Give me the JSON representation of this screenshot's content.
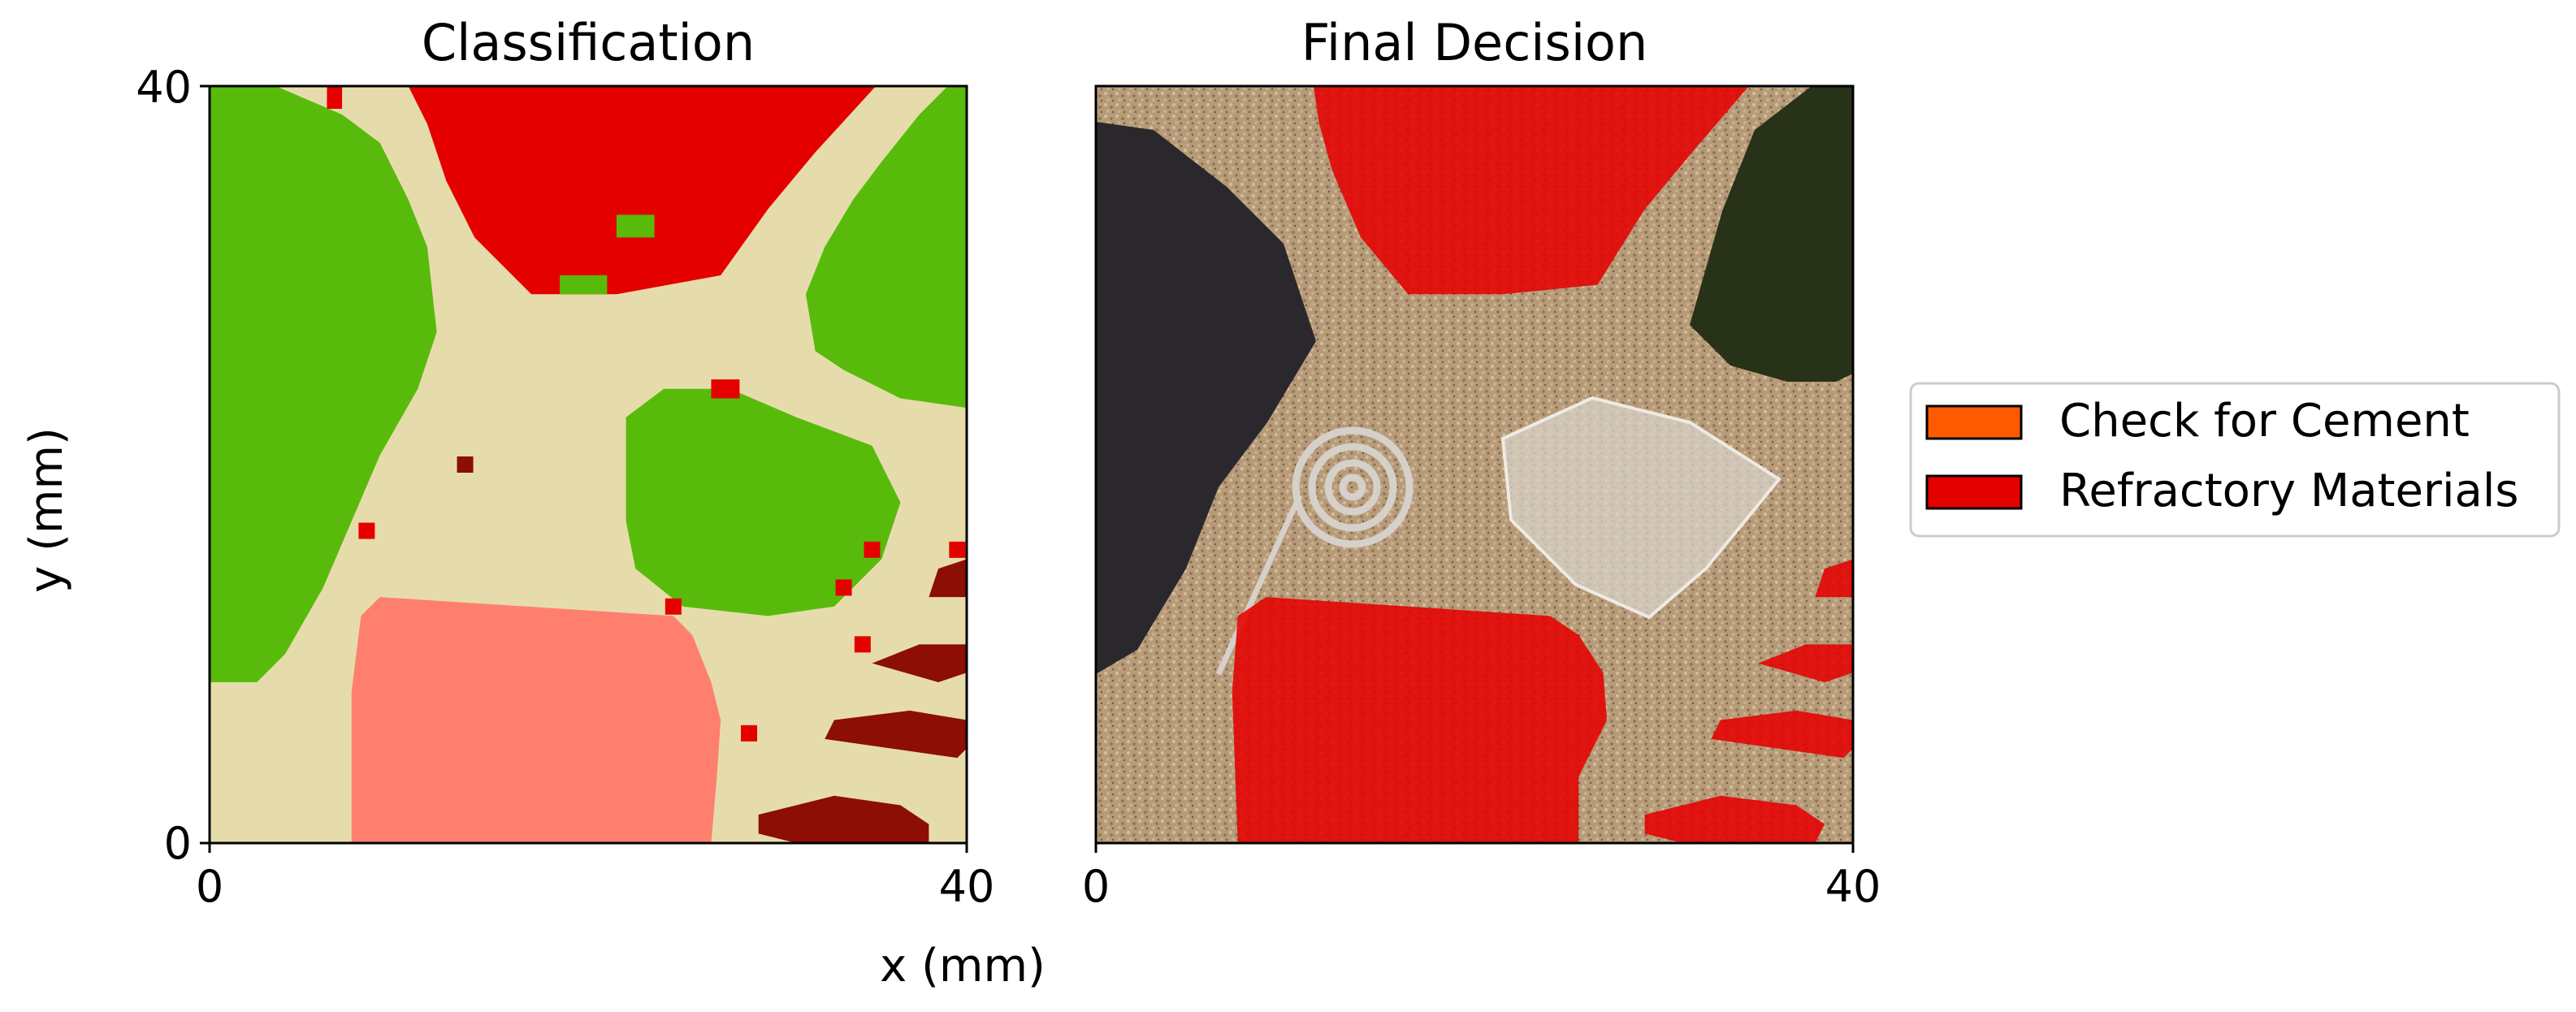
{
  "figure": {
    "xlabel": "x (mm)",
    "ylabel": "y (mm)"
  },
  "chart_data": [
    {
      "type": "heatmap",
      "title": "Classification",
      "xlim": [
        0,
        40
      ],
      "ylim": [
        0,
        40
      ],
      "xticks": [
        "0",
        "40"
      ],
      "yticks": [
        "0",
        "40"
      ],
      "classes": [
        {
          "id": "background",
          "color": "#e6dcab"
        },
        {
          "id": "class-green",
          "color": "#58bb0b"
        },
        {
          "id": "class-red",
          "color": "#e50000"
        },
        {
          "id": "class-salmon",
          "color": "#ff7f6f"
        },
        {
          "id": "class-darkred",
          "color": "#8c0e06"
        }
      ],
      "regions": [
        {
          "class": "class-red",
          "polygon": [
            [
              10.5,
              40
            ],
            [
              35.2,
              40
            ],
            [
              32,
              36.5
            ],
            [
              29.5,
              33.5
            ],
            [
              27,
              30
            ],
            [
              21.5,
              29
            ],
            [
              17,
              29
            ],
            [
              14,
              32
            ],
            [
              12.5,
              35
            ],
            [
              11.5,
              38
            ]
          ]
        },
        {
          "class": "class-green",
          "polygon": [
            [
              0,
              40
            ],
            [
              3.5,
              40
            ],
            [
              7,
              38.5
            ],
            [
              9,
              37
            ],
            [
              10.5,
              34
            ],
            [
              11.5,
              31.5
            ],
            [
              12,
              27
            ],
            [
              11,
              24
            ],
            [
              9,
              20.5
            ],
            [
              7.5,
              17
            ],
            [
              6,
              13.5
            ],
            [
              4,
              10
            ],
            [
              2.5,
              8.5
            ],
            [
              0,
              8.5
            ]
          ]
        },
        {
          "class": "class-green",
          "polygon": [
            [
              40,
              40
            ],
            [
              39,
              40
            ],
            [
              37.5,
              38.5
            ],
            [
              35.5,
              36
            ],
            [
              34,
              34
            ],
            [
              32.5,
              31.5
            ],
            [
              31.5,
              29
            ],
            [
              32,
              26
            ],
            [
              33.5,
              25
            ],
            [
              36.5,
              23.5
            ],
            [
              40,
              23
            ]
          ]
        },
        {
          "class": "class-green",
          "polygon": [
            [
              22,
              22.5
            ],
            [
              24,
              24
            ],
            [
              27.5,
              24
            ],
            [
              31,
              22.5
            ],
            [
              35,
              21
            ],
            [
              36.5,
              18
            ],
            [
              35.5,
              15
            ],
            [
              33,
              12.5
            ],
            [
              29.5,
              12
            ],
            [
              25,
              12.5
            ],
            [
              22.5,
              14.5
            ],
            [
              22,
              17
            ],
            [
              22,
              20
            ]
          ]
        },
        {
          "class": "class-salmon",
          "polygon": [
            [
              7.5,
              0
            ],
            [
              26.5,
              0
            ],
            [
              26.8,
              3.5
            ],
            [
              27,
              6.5
            ],
            [
              26.5,
              8.5
            ],
            [
              25.5,
              11
            ],
            [
              24.5,
              12
            ],
            [
              9,
              13
            ],
            [
              8,
              12
            ],
            [
              7.5,
              8
            ],
            [
              7.5,
              4
            ]
          ]
        },
        {
          "class": "class-darkred",
          "polygon": [
            [
              29,
              1.5
            ],
            [
              33,
              2.5
            ],
            [
              36.5,
              2
            ],
            [
              38,
              1
            ],
            [
              38,
              0
            ],
            [
              31,
              0
            ],
            [
              29,
              0.5
            ]
          ]
        },
        {
          "class": "class-darkred",
          "polygon": [
            [
              32.5,
              5.5
            ],
            [
              36,
              5
            ],
            [
              39.5,
              4.5
            ],
            [
              40,
              5
            ],
            [
              40,
              6.5
            ],
            [
              37,
              7
            ],
            [
              33,
              6.5
            ]
          ]
        },
        {
          "class": "class-darkred",
          "polygon": [
            [
              35,
              9.5
            ],
            [
              38.5,
              8.5
            ],
            [
              40,
              9
            ],
            [
              40,
              10.5
            ],
            [
              37.5,
              10.5
            ]
          ]
        },
        {
          "class": "class-darkred",
          "polygon": [
            [
              38,
              13
            ],
            [
              40,
              13
            ],
            [
              40,
              15
            ],
            [
              38.5,
              14.5
            ]
          ]
        },
        {
          "class": "class-red",
          "polygon": [
            [
              26.5,
              23.5
            ],
            [
              28,
              23.5
            ],
            [
              28,
              24.5
            ],
            [
              26.5,
              24.5
            ]
          ]
        },
        {
          "class": "class-red",
          "polygon": [
            [
              6.2,
              38.8
            ],
            [
              7,
              38.8
            ],
            [
              7,
              40
            ],
            [
              6.2,
              40
            ]
          ]
        },
        {
          "class": "class-green",
          "polygon": [
            [
              21.5,
              32
            ],
            [
              23.5,
              32
            ],
            [
              23.5,
              33.2
            ],
            [
              21.5,
              33.2
            ]
          ]
        },
        {
          "class": "class-green",
          "polygon": [
            [
              18.5,
              29
            ],
            [
              21,
              29
            ],
            [
              21,
              30
            ],
            [
              18.5,
              30
            ]
          ]
        }
      ],
      "specks": [
        {
          "class": "class-darkred",
          "x": 13.5,
          "y": 20
        },
        {
          "class": "class-red",
          "x": 8.3,
          "y": 16.5
        },
        {
          "class": "class-red",
          "x": 24.5,
          "y": 12.5
        },
        {
          "class": "class-red",
          "x": 28.5,
          "y": 5.8
        },
        {
          "class": "class-red",
          "x": 33.5,
          "y": 13.5
        },
        {
          "class": "class-red",
          "x": 34.5,
          "y": 10.5
        },
        {
          "class": "class-red",
          "x": 35,
          "y": 15.5
        },
        {
          "class": "class-red",
          "x": 39.5,
          "y": 15.5
        }
      ]
    },
    {
      "type": "heatmap",
      "title": "Final Decision",
      "xlim": [
        0,
        40
      ],
      "ylim": [
        0,
        40
      ],
      "xticks": [
        "0",
        "40"
      ],
      "yticks": [],
      "image_palette": {
        "sand": "#b79a78",
        "dark_rock": "#2a282c",
        "dark_green": "#283218",
        "metal": "#c8c2bc",
        "glass": "#cfc8be"
      },
      "overlay_color": "#e50000",
      "overlay_regions": [
        {
          "label": "Refractory Materials",
          "polygon": [
            [
              11.5,
              40
            ],
            [
              34.5,
              40
            ],
            [
              31.5,
              36.5
            ],
            [
              29,
              33.5
            ],
            [
              26.5,
              29.5
            ],
            [
              21.5,
              29
            ],
            [
              16.5,
              29
            ],
            [
              14,
              32
            ],
            [
              12.5,
              35.5
            ],
            [
              11.8,
              38
            ]
          ]
        },
        {
          "label": "Refractory Materials",
          "polygon": [
            [
              7.5,
              0
            ],
            [
              25.5,
              0
            ],
            [
              25.5,
              3.5
            ],
            [
              27,
              6.5
            ],
            [
              26.8,
              9
            ],
            [
              25.5,
              11
            ],
            [
              24,
              12
            ],
            [
              9,
              13
            ],
            [
              7.5,
              12
            ],
            [
              7.2,
              8
            ]
          ]
        },
        {
          "label": "Refractory Materials",
          "polygon": [
            [
              29,
              1.5
            ],
            [
              33,
              2.5
            ],
            [
              37,
              2
            ],
            [
              38.5,
              1
            ],
            [
              38,
              0
            ],
            [
              31,
              0
            ],
            [
              29,
              0.5
            ]
          ]
        },
        {
          "label": "Refractory Materials",
          "polygon": [
            [
              32.5,
              5.5
            ],
            [
              36,
              5
            ],
            [
              39.5,
              4.5
            ],
            [
              40,
              5
            ],
            [
              40,
              6.5
            ],
            [
              37,
              7
            ],
            [
              33,
              6.5
            ]
          ]
        },
        {
          "label": "Refractory Materials",
          "polygon": [
            [
              35,
              9.5
            ],
            [
              38.5,
              8.5
            ],
            [
              40,
              9
            ],
            [
              40,
              10.5
            ],
            [
              37.5,
              10.5
            ]
          ]
        },
        {
          "label": "Refractory Materials",
          "polygon": [
            [
              38,
              13
            ],
            [
              40,
              13
            ],
            [
              40,
              15
            ],
            [
              38.5,
              14.5
            ]
          ]
        }
      ]
    }
  ],
  "legend": {
    "placement": "right",
    "items": [
      {
        "label": "Check for Cement",
        "color": "#ff5a00"
      },
      {
        "label": "Refractory Materials",
        "color": "#e50000"
      }
    ]
  }
}
